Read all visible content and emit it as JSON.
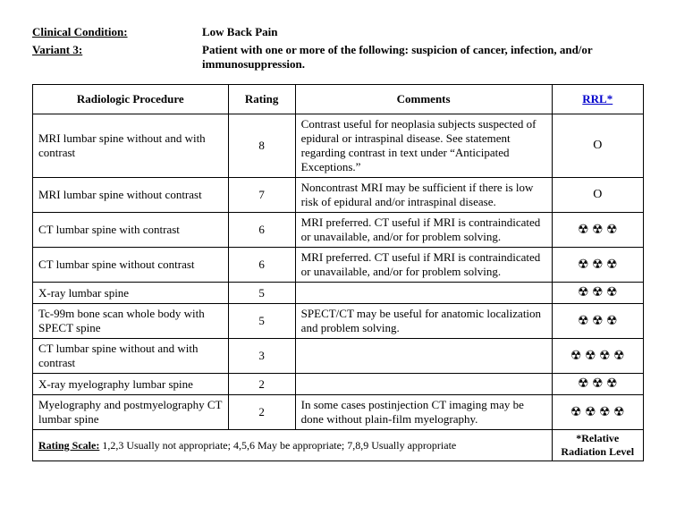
{
  "header": {
    "condition_label": "Clinical Condition:",
    "condition_value": "Low Back Pain",
    "variant_label": "Variant 3:",
    "variant_value": "Patient with one or more of the following: suspicion of cancer, infection, and/or immunosuppression."
  },
  "columns": {
    "procedure": "Radiologic Procedure",
    "rating": "Rating",
    "comments": "Comments",
    "rrl": "RRL*"
  },
  "rrl_symbols": {
    "none": "O",
    "rad": "☢"
  },
  "rows": [
    {
      "procedure": "MRI lumbar spine without and with contrast",
      "rating": "8",
      "comments": "Contrast useful for neoplasia subjects suspected of epidural or intraspinal disease. See statement regarding contrast in text under “Anticipated Exceptions.”",
      "rrl": "O"
    },
    {
      "procedure": "MRI lumbar spine without contrast",
      "rating": "7",
      "comments": "Noncontrast MRI may be sufficient if there is low risk of epidural and/or intraspinal disease.",
      "rrl": "O"
    },
    {
      "procedure": "CT lumbar spine with contrast",
      "rating": "6",
      "comments": "MRI preferred. CT useful if MRI is contraindicated or unavailable, and/or for problem solving.",
      "rrl": "☢ ☢ ☢"
    },
    {
      "procedure": "CT lumbar spine without contrast",
      "rating": "6",
      "comments": "MRI preferred. CT useful if MRI is contraindicated or unavailable, and/or for problem solving.",
      "rrl": "☢ ☢ ☢"
    },
    {
      "procedure": "X-ray lumbar spine",
      "rating": "5",
      "comments": "",
      "rrl": "☢ ☢ ☢"
    },
    {
      "procedure": "Tc-99m bone scan whole body with SPECT spine",
      "rating": "5",
      "comments": "SPECT/CT may be useful for anatomic localization and problem solving.",
      "rrl": "☢ ☢ ☢"
    },
    {
      "procedure": "CT lumbar spine without and with contrast",
      "rating": "3",
      "comments": "",
      "rrl": "☢ ☢ ☢ ☢"
    },
    {
      "procedure": "X-ray myelography lumbar spine",
      "rating": "2",
      "comments": "",
      "rrl": "☢ ☢ ☢"
    },
    {
      "procedure": "Myelography and postmyelography CT lumbar spine",
      "rating": "2",
      "comments": "In some cases postinjection CT imaging may be done without plain-film myelography.",
      "rrl": "☢ ☢ ☢ ☢"
    }
  ],
  "footer": {
    "scale_label": "Rating Scale:",
    "scale_text": " 1,2,3 Usually not appropriate; 4,5,6 May be appropriate; 7,8,9 Usually appropriate",
    "rrl_note": "*Relative Radiation Level"
  }
}
